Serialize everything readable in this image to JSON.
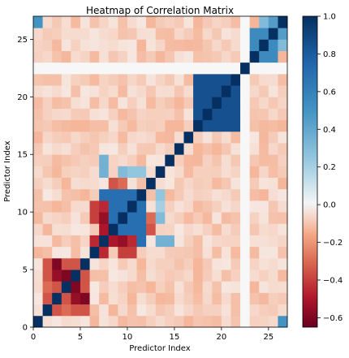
{
  "chart_data": {
    "type": "heatmap",
    "title": "Heatmap of Correlation Matrix",
    "xlabel": "Predictor Index",
    "ylabel": "Predictor Index",
    "n": 27,
    "x_ticks": [
      0,
      5,
      10,
      15,
      20,
      25
    ],
    "y_ticks": [
      0,
      5,
      10,
      15,
      20,
      25
    ],
    "xlim": [
      0,
      27
    ],
    "ylim": [
      0,
      27
    ],
    "colormap": "RdBu",
    "vmin": -0.65,
    "vmax": 1.0,
    "colorbar_ticks": [
      "1.0",
      "0.8",
      "0.6",
      "0.4",
      "0.2",
      "0.0",
      "−0.2",
      "−0.4",
      "−0.6"
    ],
    "colorbar_tick_values": [
      1.0,
      0.8,
      0.6,
      0.4,
      0.2,
      0.0,
      -0.2,
      -0.4,
      -0.6
    ],
    "blocks": [
      {
        "rows": [
          7,
          11
        ],
        "cols": [
          7,
          11
        ],
        "value": 0.7
      },
      {
        "rows": [
          17,
          21
        ],
        "cols": [
          17,
          21
        ],
        "value": 0.85
      },
      {
        "rows": [
          23,
          25
        ],
        "cols": [
          23,
          25
        ],
        "value": 0.55
      },
      {
        "rows": [
          2,
          5
        ],
        "cols": [
          1,
          4
        ],
        "value": -0.35
      },
      {
        "rows": [
          1,
          4
        ],
        "cols": [
          2,
          5
        ],
        "value": -0.35
      }
    ],
    "strong_negatives": [
      [
        5,
        2,
        -0.6
      ],
      [
        2,
        5,
        -0.6
      ],
      [
        3,
        4,
        -0.6
      ],
      [
        4,
        3,
        -0.6
      ],
      [
        2,
        4,
        -0.55
      ],
      [
        4,
        2,
        -0.55
      ],
      [
        7,
        9,
        -0.55
      ],
      [
        9,
        7,
        -0.55
      ],
      [
        8,
        7,
        -0.5
      ],
      [
        7,
        8,
        -0.5
      ],
      [
        6,
        7,
        -0.45
      ],
      [
        7,
        6,
        -0.45
      ],
      [
        10,
        7,
        -0.45
      ],
      [
        7,
        10,
        -0.45
      ],
      [
        6,
        10,
        -0.4
      ],
      [
        10,
        6,
        -0.4
      ],
      [
        6,
        9,
        -0.4
      ],
      [
        9,
        6,
        -0.4
      ],
      [
        8,
        12,
        -0.35
      ],
      [
        12,
        8,
        -0.35
      ],
      [
        9,
        12,
        -0.3
      ],
      [
        12,
        9,
        -0.3
      ],
      [
        3,
        1,
        -0.3
      ],
      [
        1,
        3,
        -0.3
      ]
    ],
    "light_positives": [
      [
        13,
        7,
        0.35
      ],
      [
        7,
        13,
        0.35
      ],
      [
        13,
        10,
        0.25
      ],
      [
        10,
        13,
        0.25
      ],
      [
        13,
        11,
        0.25
      ],
      [
        11,
        13,
        0.25
      ],
      [
        9,
        13,
        0.3
      ],
      [
        13,
        9,
        0.3
      ],
      [
        10,
        13,
        0.2
      ],
      [
        7,
        14,
        0.35
      ],
      [
        14,
        7,
        0.35
      ],
      [
        26,
        0,
        0.5
      ],
      [
        0,
        26,
        0.5
      ],
      [
        24,
        24,
        0.55
      ],
      [
        25,
        26,
        0.45
      ],
      [
        26,
        25,
        0.45
      ],
      [
        24,
        26,
        0.3
      ],
      [
        26,
        24,
        0.3
      ],
      [
        22,
        26,
        0.15
      ],
      [
        26,
        22,
        0.15
      ]
    ],
    "zero_rows": [
      22
    ],
    "zero_cols": [
      22
    ]
  }
}
